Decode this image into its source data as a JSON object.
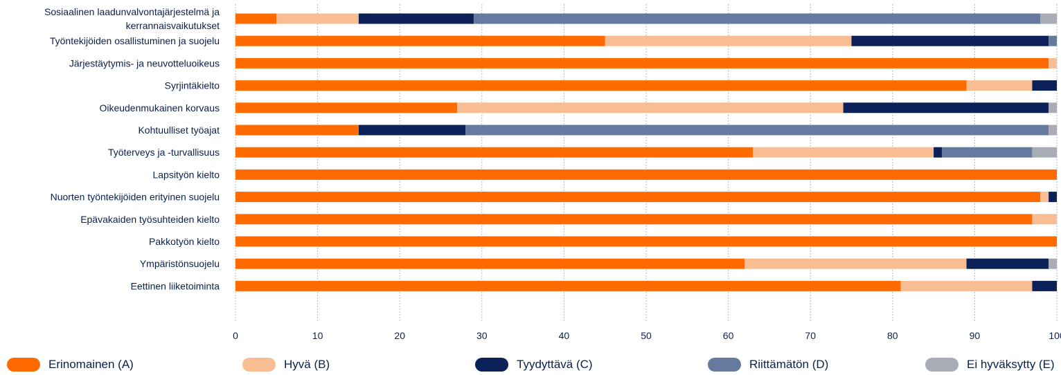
{
  "chart_data": {
    "type": "bar",
    "orientation": "horizontal",
    "stacked": true,
    "categories": [
      "Sosiaalinen laadunvalvontajärjestelmä ja kerrannaisvaikutukset",
      "Työntekijöiden osallistuminen ja suojelu",
      "Järjestäytymis- ja neuvotteluoikeus",
      "Syrjintäkielto",
      "Oikeudenmukainen korvaus",
      "Kohtuulliset työajat",
      "Työterveys ja -turvallisuus",
      "Lapsityön kielto",
      "Nuorten työntekijöiden erityinen suojelu",
      "Epävakaiden työsuhteiden kielto",
      "Pakkotyön kielto",
      "Ympäristönsuojelu",
      "Eettinen liiketoiminta"
    ],
    "category_lines": [
      [
        "Sosiaalinen laadunvalvontajärjestelmä ja",
        "kerrannaisvaikutukset"
      ],
      [
        "Työntekijöiden osallistuminen ja suojelu"
      ],
      [
        "Järjestäytymis- ja neuvotteluoikeus"
      ],
      [
        "Syrjintäkielto"
      ],
      [
        "Oikeudenmukainen korvaus"
      ],
      [
        "Kohtuulliset työajat"
      ],
      [
        "Työterveys ja -turvallisuus"
      ],
      [
        "Lapsityön kielto"
      ],
      [
        "Nuorten työntekijöiden erityinen suojelu"
      ],
      [
        "Epävakaiden työsuhteiden kielto"
      ],
      [
        "Pakkotyön kielto"
      ],
      [
        "Ympäristönsuojelu"
      ],
      [
        "Eettinen liiketoiminta"
      ]
    ],
    "series": [
      {
        "name": "Erinomainen (A)",
        "color": "#ff6b00",
        "values": [
          5,
          45,
          99,
          89,
          27,
          15,
          63,
          100,
          98,
          97,
          100,
          62,
          81
        ]
      },
      {
        "name": "Hyvä (B)",
        "color": "#f9bd94",
        "values": [
          10,
          30,
          1,
          8,
          47,
          0,
          22,
          0,
          1,
          3,
          0,
          27,
          16
        ]
      },
      {
        "name": "Tyydyttävä (C)",
        "color": "#0b2158",
        "values": [
          14,
          24,
          0,
          3,
          25,
          13,
          1,
          0,
          1,
          0,
          0,
          10,
          3
        ]
      },
      {
        "name": "Riittämätön (D)",
        "color": "#66799e",
        "values": [
          69,
          1,
          0,
          0,
          0,
          71,
          11,
          0,
          0,
          0,
          0,
          0,
          0
        ]
      },
      {
        "name": "Ei hyväksytty (E)",
        "color": "#a8acb4",
        "values": [
          2,
          0,
          0,
          0,
          1,
          1,
          3,
          0,
          0,
          0,
          0,
          1,
          0
        ]
      }
    ],
    "xlim": [
      0,
      100
    ],
    "xticks": [
      "0",
      "10",
      "20",
      "30",
      "40",
      "50",
      "60",
      "70",
      "80",
      "90",
      "100"
    ],
    "grid": "vertical dotted",
    "legend_position": "bottom"
  }
}
